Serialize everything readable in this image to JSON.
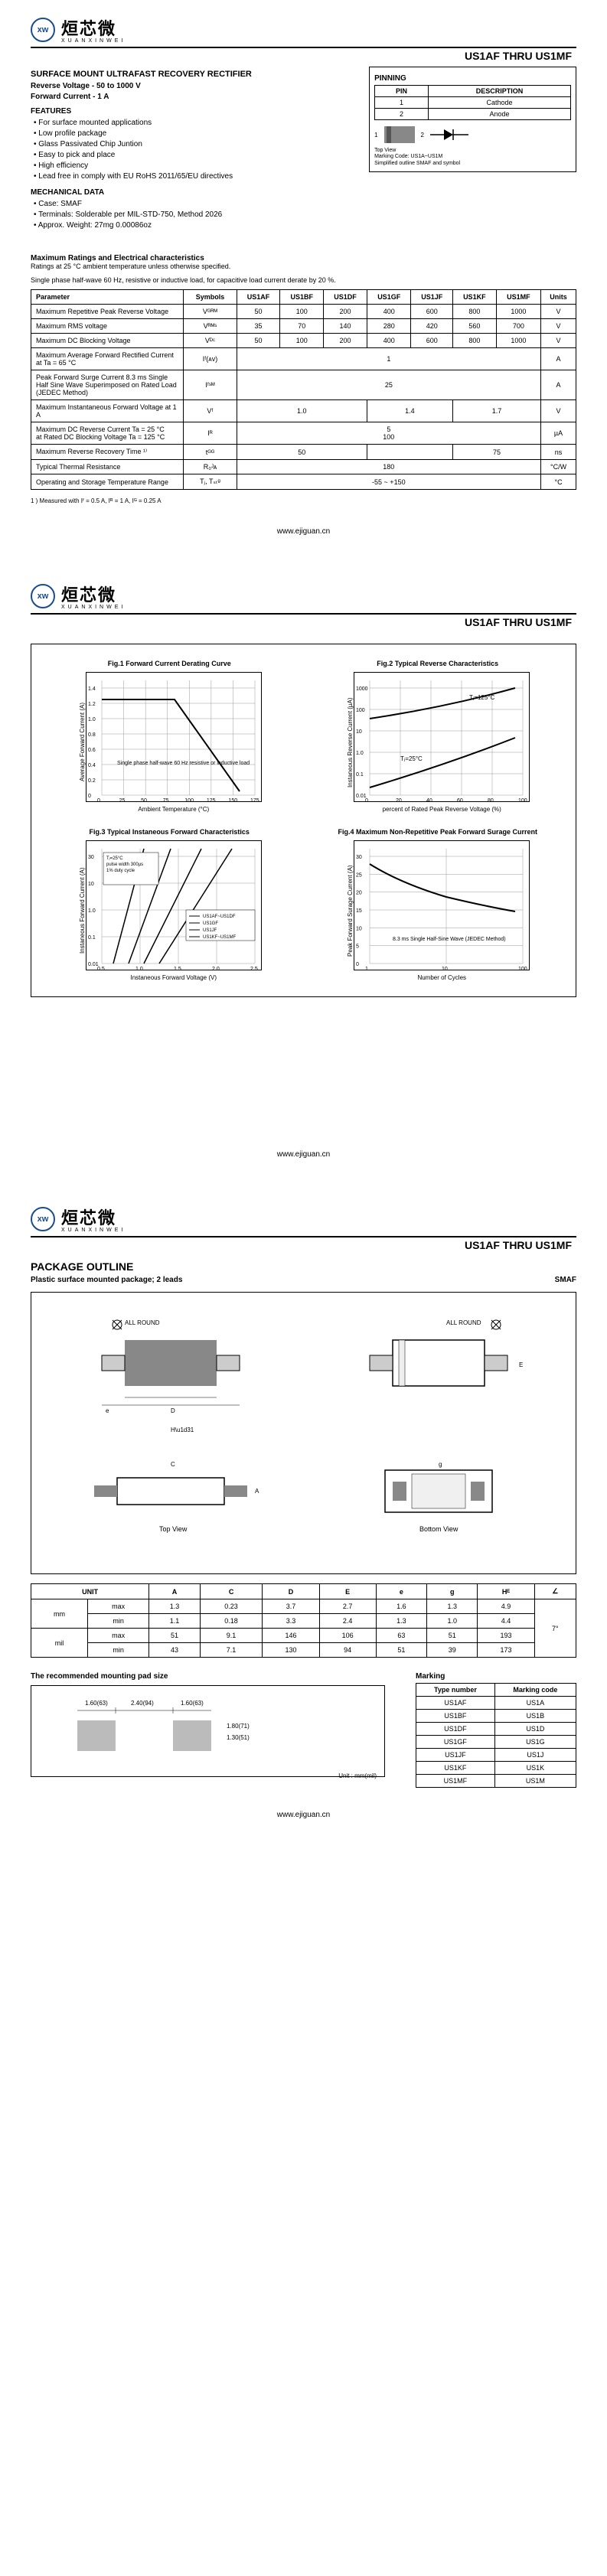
{
  "logo": {
    "cn": "烜芯微",
    "en": "XUANXINWEI",
    "badge": "xw"
  },
  "header": {
    "title": "US1AF  THRU  US1MF"
  },
  "p1": {
    "title": "SURFACE MOUNT ULTRAFAST RECOVERY RECTIFIER",
    "reverse": "Reverse Voltage - 50 to 1000 V",
    "forward": "Forward Current - 1 A",
    "features_title": "FEATURES",
    "features": [
      "For surface mounted applications",
      "Low profile package",
      "Glass Passivated Chip Juntion",
      "Easy to pick and place",
      "High efficiency",
      "Lead free in comply with EU RoHS 2011/65/EU directives"
    ],
    "mech_title": "MECHANICAL DATA",
    "mech": [
      "Case: SMAF",
      "Terminals: Solderable per MIL-STD-750, Method 2026",
      "Approx. Weight: 27mg  0.00086oz"
    ],
    "pinning_title": "PINNING",
    "pin_h1": "PIN",
    "pin_h2": "DESCRIPTION",
    "pin1": "1",
    "pin1d": "Cathode",
    "pin2": "2",
    "pin2d": "Anode",
    "pin_note1": "Top View",
    "pin_note2": "Marking Code: US1A~US1M",
    "pin_note3": "Simplified outline SMAF and symbol",
    "num1": "1",
    "num2": "2"
  },
  "ratings": {
    "title": "Maximum Ratings and Electrical characteristics",
    "note1": "Ratings at 25 °C ambient temperature unless otherwise specified.",
    "note2": "Single phase half-wave 60 Hz, resistive or inductive load, for capacitive load current derate by 20 %.",
    "head": [
      "Parameter",
      "Symbols",
      "US1AF",
      "US1BF",
      "US1DF",
      "US1GF",
      "US1JF",
      "US1KF",
      "US1MF",
      "Units"
    ],
    "rows": [
      {
        "p": "Maximum Repetitive Peak Reverse Voltage",
        "s": "Vᴳᴿᴹ",
        "v": [
          "50",
          "100",
          "200",
          "400",
          "600",
          "800",
          "1000"
        ],
        "u": "V"
      },
      {
        "p": "Maximum RMS voltage",
        "s": "Vᴿᴹˢ",
        "v": [
          "35",
          "70",
          "140",
          "280",
          "420",
          "560",
          "700"
        ],
        "u": "V"
      },
      {
        "p": "Maximum DC Blocking Voltage",
        "s": "Vᴰᶜ",
        "v": [
          "50",
          "100",
          "200",
          "400",
          "600",
          "800",
          "1000"
        ],
        "u": "V"
      },
      {
        "p": "Maximum Average Forward Rectified Current at Ta = 65 °C",
        "s": "Iᶠ(ᴀᴠ)",
        "span": "1",
        "u": "A"
      },
      {
        "p": "Peak Forward Surge Current 8.3 ms Single Half Sine Wave Superimposed on Rated Load (JEDEC Method)",
        "s": "Iᶠˢᴹ",
        "span": "25",
        "u": "A"
      },
      {
        "p": "Maximum Instantaneous Forward Voltage at 1 A",
        "s": "Vᶠ",
        "g": [
          {
            "c": 3,
            "t": "1.0"
          },
          {
            "c": 2,
            "t": "1.4"
          },
          {
            "c": 2,
            "t": "1.7"
          }
        ],
        "u": "V"
      },
      {
        "p": "Maximum DC Reverse Current    Ta = 25 °C\nat Rated DC Blocking Voltage    Ta = 125 °C",
        "s": "Iᴿ",
        "span": "5\n100",
        "u": "µA"
      },
      {
        "p": "Maximum Reverse Recovery Time ¹⁾",
        "s": "tᴳᴳ",
        "g": [
          {
            "c": 3,
            "t": "50"
          },
          {
            "c": 2,
            "t": ""
          },
          {
            "c": 2,
            "t": "75"
          }
        ],
        "u": "ns"
      },
      {
        "p": "Typical Thermal Resistance",
        "s": "R₀ᴶᴀ",
        "span": "180",
        "u": "°C/W"
      },
      {
        "p": "Operating and Storage Temperature Range",
        "s": "Tⱼ, Tₛₜᵍ",
        "span": "-55 ~ +150",
        "u": "°C"
      }
    ],
    "footnote": "1 ) Measured with Iᶠ = 0.5 A, Iᴿ = 1 A, Iᴳ = 0.25 A"
  },
  "footer": {
    "link": "www.ejiguan.cn"
  },
  "charts": {
    "c1": {
      "title": "Fig.1  Forward Current Derating Curve",
      "yl": "Average Forward Current (A)",
      "xl": "Ambient Temperature (°C)",
      "yticks": [
        "0",
        "0.2",
        "0.4",
        "0.6",
        "0.8",
        "1.0",
        "1.2",
        "1.4"
      ],
      "xticks": [
        "0",
        "25",
        "50",
        "75",
        "100",
        "125",
        "150",
        "175"
      ],
      "note": "Single phase half-wave 60 Hz resistive or inductive load"
    },
    "c2": {
      "title": "Fig.2  Typical Reverse Characteristics",
      "yl": "Instaneous Reverse Current (µA)",
      "xl": "percent of Rated Peak Reverse Voltage (%)",
      "yticks": [
        "0.01",
        "0.1",
        "1.0",
        "10",
        "100",
        "1000"
      ],
      "xticks": [
        "0",
        "20",
        "40",
        "60",
        "80",
        "100"
      ],
      "labels": [
        "Tⱼ=125°C",
        "Tⱼ=25°C"
      ]
    },
    "c3": {
      "title": "Fig.3  Typical Instaneous Forward Characteristics",
      "yl": "Instaneous Forward Current (A)",
      "xl": "Instaneous Forward Voltage (V)",
      "yticks": [
        "0.01",
        "0.1",
        "1.0",
        "10",
        "30"
      ],
      "xticks": [
        "0.5",
        "1.0",
        "1.5",
        "2.0",
        "2.5"
      ],
      "note": "Tⱼ=25°C\npulse width 300µs\n1% duty cycle",
      "legend": [
        "US1AF~US1DF",
        "US1GF",
        "US1JF",
        "US1KF~US1MF"
      ]
    },
    "c4": {
      "title": "Fig.4  Maximum Non-Repetitive Peak Forward Surage Current",
      "yl": "Peak Forward Surage Current (A)",
      "xl": "Number of Cycles",
      "yticks": [
        "0",
        "5",
        "10",
        "15",
        "20",
        "25",
        "30"
      ],
      "xticks": [
        "1",
        "10",
        "100"
      ],
      "note": "8.3 ms Single Half-Sine Wave (JEDEC Method)"
    }
  },
  "pkg": {
    "title": "PACKAGE  OUTLINE",
    "sub": "Plastic surface mounted package; 2 leads",
    "smaf": "SMAF",
    "labels": {
      "allround": "ALL ROUND",
      "top": "Top View",
      "bottom": "Bottom View"
    },
    "dim_units": [
      "A",
      "C",
      "D",
      "E",
      "e",
      "g",
      "Hᴱ",
      "∠"
    ],
    "dim_unit_col": "UNIT",
    "dim_mm": "mm",
    "dim_mil": "mil",
    "dim_max": "max",
    "dim_min": "min",
    "r_mm_max": [
      "1.3",
      "0.23",
      "3.7",
      "2.7",
      "1.6",
      "1.3",
      "4.9"
    ],
    "r_mm_min": [
      "1.1",
      "0.18",
      "3.3",
      "2.4",
      "1.3",
      "1.0",
      "4.4"
    ],
    "r_mil_max": [
      "51",
      "9.1",
      "146",
      "106",
      "63",
      "51",
      "193"
    ],
    "r_mil_min": [
      "43",
      "7.1",
      "130",
      "94",
      "51",
      "39",
      "173"
    ],
    "angle": "7°"
  },
  "pad": {
    "title": "The recommended mounting pad size",
    "dims": [
      "1.60(63)",
      "2.40(94)",
      "1.60(63)",
      "1.80(71)",
      "1.30(51)"
    ],
    "unit_note": "Unit : mm(mil)"
  },
  "marking": {
    "title": "Marking",
    "h1": "Type number",
    "h2": "Marking code",
    "rows": [
      [
        "US1AF",
        "US1A"
      ],
      [
        "US1BF",
        "US1B"
      ],
      [
        "US1DF",
        "US1D"
      ],
      [
        "US1GF",
        "US1G"
      ],
      [
        "US1JF",
        "US1J"
      ],
      [
        "US1KF",
        "US1K"
      ],
      [
        "US1MF",
        "US1M"
      ]
    ]
  }
}
